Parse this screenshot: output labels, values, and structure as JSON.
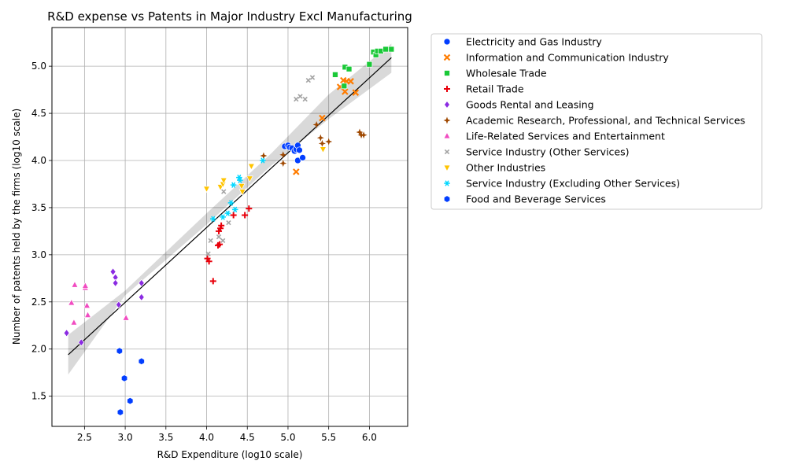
{
  "chart_data": {
    "type": "scatter",
    "title": "R&D expense vs Patents in Major Industry Excl Manufacturing",
    "xlabel": "R&D Expenditure (log10 scale)",
    "ylabel": "Number of patents held by the firms (log10 scale)",
    "xlim": [
      2.1,
      6.47
    ],
    "ylim": [
      1.18,
      5.41
    ],
    "xticks": [
      "2.5",
      "3.0",
      "3.5",
      "4.0",
      "4.5",
      "5.0",
      "5.5",
      "6.0"
    ],
    "yticks": [
      "1.5",
      "2.0",
      "2.5",
      "3.0",
      "3.5",
      "4.0",
      "4.5",
      "5.0"
    ],
    "grid": true,
    "legend_position": "outside-right",
    "regression": {
      "line": [
        [
          2.3,
          1.94
        ],
        [
          6.27,
          5.09
        ]
      ],
      "band": [
        [
          2.3,
          1.73,
          2.15
        ],
        [
          3.0,
          2.57,
          2.62
        ],
        [
          4.0,
          3.32,
          3.44
        ],
        [
          4.8,
          3.95,
          4.08
        ],
        [
          5.5,
          4.44,
          4.7
        ],
        [
          6.27,
          4.93,
          5.24
        ]
      ]
    },
    "series": [
      {
        "name": "Electricity and Gas Industry",
        "marker": "circle",
        "color": "#023eff",
        "points": [
          [
            4.96,
            4.15
          ],
          [
            5.0,
            4.16
          ],
          [
            5.02,
            4.14
          ],
          [
            5.05,
            4.13
          ],
          [
            5.08,
            4.1
          ],
          [
            5.1,
            4.12
          ],
          [
            5.12,
            4.16
          ],
          [
            5.14,
            4.11
          ],
          [
            5.12,
            4.0
          ],
          [
            5.18,
            4.03
          ]
        ]
      },
      {
        "name": "Information and Communication Industry",
        "marker": "x",
        "color": "#ff7c00",
        "points": [
          [
            5.1,
            3.88
          ],
          [
            5.42,
            4.45
          ],
          [
            5.64,
            4.78
          ],
          [
            5.68,
            4.85
          ],
          [
            5.7,
            4.73
          ],
          [
            5.72,
            4.84
          ],
          [
            5.77,
            4.84
          ],
          [
            5.83,
            4.72
          ]
        ]
      },
      {
        "name": "Wholesale Trade",
        "marker": "square",
        "color": "#1ac938",
        "points": [
          [
            5.58,
            4.91
          ],
          [
            5.69,
            4.79
          ],
          [
            5.7,
            4.99
          ],
          [
            5.75,
            4.97
          ],
          [
            6.0,
            5.02
          ],
          [
            6.05,
            5.15
          ],
          [
            6.08,
            5.12
          ],
          [
            6.1,
            5.16
          ],
          [
            6.14,
            5.16
          ],
          [
            6.2,
            5.18
          ],
          [
            6.27,
            5.18
          ]
        ]
      },
      {
        "name": "Retail Trade",
        "marker": "plus",
        "color": "#e8000b",
        "points": [
          [
            4.01,
            2.96
          ],
          [
            4.03,
            2.93
          ],
          [
            4.08,
            2.72
          ],
          [
            4.14,
            3.1
          ],
          [
            4.15,
            3.25
          ],
          [
            4.16,
            3.11
          ],
          [
            4.17,
            3.28
          ],
          [
            4.18,
            3.31
          ],
          [
            4.33,
            3.42
          ],
          [
            4.47,
            3.42
          ],
          [
            4.52,
            3.49
          ]
        ]
      },
      {
        "name": "Goods Rental and Leasing",
        "marker": "diamond",
        "color": "#8b2be2",
        "points": [
          [
            2.28,
            2.17
          ],
          [
            2.46,
            2.07
          ],
          [
            2.85,
            2.82
          ],
          [
            2.88,
            2.76
          ],
          [
            2.88,
            2.7
          ],
          [
            2.92,
            2.47
          ],
          [
            3.2,
            2.7
          ],
          [
            3.2,
            2.55
          ]
        ]
      },
      {
        "name": "Academic Research, Professional, and Technical Services",
        "marker": "star4",
        "color": "#9f4800",
        "points": [
          [
            4.7,
            4.05
          ],
          [
            4.94,
            4.06
          ],
          [
            4.94,
            3.97
          ],
          [
            5.35,
            4.38
          ],
          [
            5.4,
            4.24
          ],
          [
            5.42,
            4.18
          ],
          [
            5.5,
            4.2
          ],
          [
            5.88,
            4.3
          ],
          [
            5.9,
            4.27
          ],
          [
            5.93,
            4.27
          ]
        ]
      },
      {
        "name": "Life-Related Services and Entertainment",
        "marker": "triangle-up",
        "color": "#f14cc1",
        "points": [
          [
            2.34,
            2.49
          ],
          [
            2.37,
            2.28
          ],
          [
            2.38,
            2.68
          ],
          [
            2.51,
            2.65
          ],
          [
            2.51,
            2.67
          ],
          [
            2.53,
            2.46
          ],
          [
            2.54,
            2.36
          ],
          [
            3.01,
            2.33
          ]
        ]
      },
      {
        "name": "Service Industry (Other Services)",
        "marker": "x-small",
        "color": "#a3a3a3",
        "points": [
          [
            4.02,
            3.01
          ],
          [
            4.05,
            3.15
          ],
          [
            4.15,
            3.19
          ],
          [
            4.2,
            3.15
          ],
          [
            4.21,
            3.67
          ],
          [
            4.27,
            3.34
          ],
          [
            5.1,
            4.65
          ],
          [
            5.15,
            4.68
          ],
          [
            5.21,
            4.65
          ],
          [
            5.25,
            4.85
          ],
          [
            5.3,
            4.88
          ]
        ]
      },
      {
        "name": "Other Industries",
        "marker": "triangle-down",
        "color": "#ffc400",
        "points": [
          [
            4.0,
            3.7
          ],
          [
            4.17,
            3.72
          ],
          [
            4.2,
            3.75
          ],
          [
            4.21,
            3.79
          ],
          [
            4.43,
            3.73
          ],
          [
            4.44,
            3.67
          ],
          [
            4.53,
            3.81
          ],
          [
            4.55,
            3.94
          ],
          [
            5.43,
            4.12
          ]
        ]
      },
      {
        "name": "Service Industry (Excluding Other Services)",
        "marker": "star6",
        "color": "#00d7ff",
        "points": [
          [
            4.08,
            3.38
          ],
          [
            4.2,
            3.4
          ],
          [
            4.26,
            3.44
          ],
          [
            4.3,
            3.55
          ],
          [
            4.33,
            3.74
          ],
          [
            4.35,
            3.48
          ],
          [
            4.4,
            3.82
          ],
          [
            4.41,
            3.79
          ],
          [
            4.69,
            4.0
          ]
        ]
      },
      {
        "name": "Food and Beverage Services",
        "marker": "hexagon",
        "color": "#023eff",
        "points": [
          [
            2.93,
            1.98
          ],
          [
            2.94,
            1.33
          ],
          [
            2.99,
            1.69
          ],
          [
            3.06,
            1.45
          ],
          [
            3.2,
            1.87
          ]
        ]
      }
    ]
  }
}
